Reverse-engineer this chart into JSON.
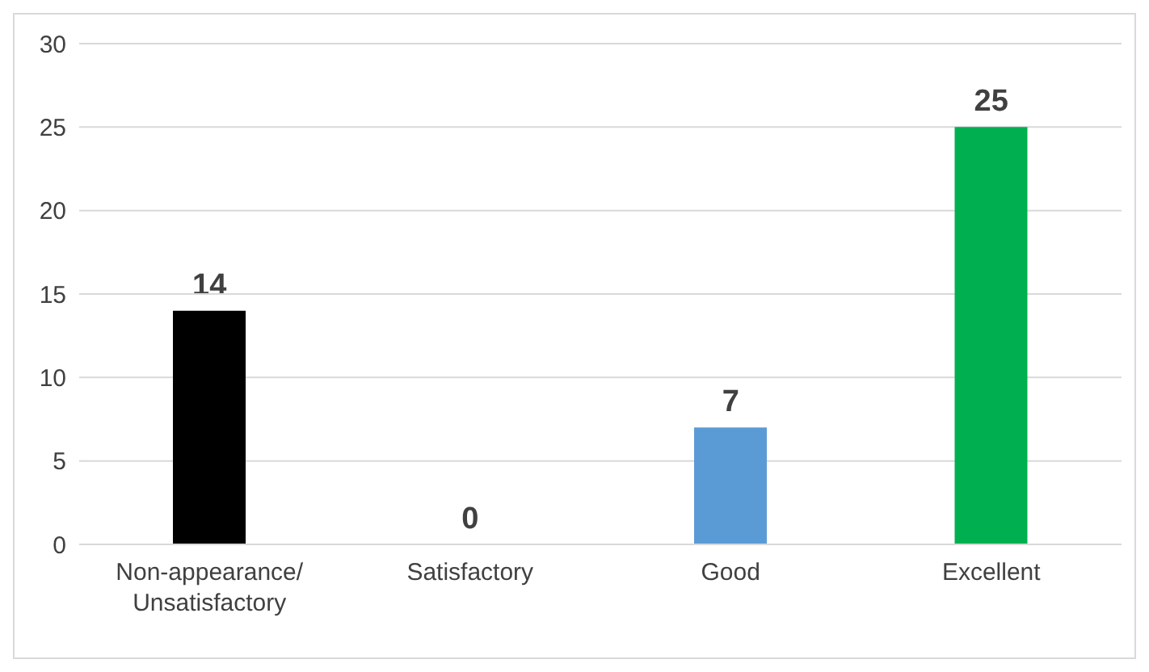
{
  "chart_data": {
    "type": "bar",
    "categories": [
      "Non-appearance/ Unsatisfactory",
      "Satisfactory",
      "Good",
      "Excellent"
    ],
    "values": [
      14,
      0,
      7,
      25
    ],
    "colors": [
      "#000000",
      "#7f7f7f",
      "#5b9bd5",
      "#00b050"
    ],
    "ylim": [
      0,
      30
    ],
    "yticks": [
      0,
      5,
      10,
      15,
      20,
      25,
      30
    ],
    "grid": "y",
    "data_labels": true
  }
}
